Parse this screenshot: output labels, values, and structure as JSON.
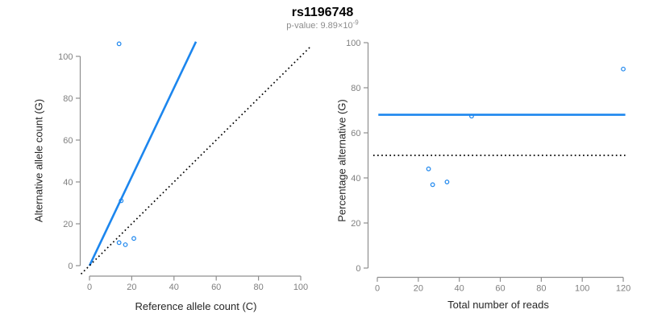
{
  "header": {
    "title": "rs1196748",
    "p_value_prefix": "p-value: 9.89×10",
    "p_value_exponent": "-9"
  },
  "colors": {
    "accent_blue": "#1C86EE",
    "axis_line_gray": "#8f8f8f",
    "tick_text_gray": "#7f7f7f",
    "axis_title_dark": "#262626",
    "dotted_line_black": "#000000"
  },
  "chart_data": [
    {
      "type": "scatter",
      "panel": "left",
      "xlabel": "Reference allele count (C)",
      "ylabel": "Alternative allele count (G)",
      "xlim": [
        0,
        100
      ],
      "ylim": [
        0,
        106
      ],
      "xticks": [
        0,
        20,
        40,
        60,
        80,
        100
      ],
      "yticks": [
        0,
        20,
        40,
        60,
        80,
        100
      ],
      "grid": false,
      "legend": null,
      "points": [
        {
          "x": 14,
          "y": 106
        },
        {
          "x": 15,
          "y": 31
        },
        {
          "x": 14,
          "y": 11
        },
        {
          "x": 17,
          "y": 10
        },
        {
          "x": 21,
          "y": 13
        }
      ],
      "lines": [
        {
          "name": "fit-line",
          "style": "solid",
          "color": "#1C86EE",
          "from": [
            0,
            0
          ],
          "to": [
            50.4,
            107
          ]
        },
        {
          "name": "identity-line",
          "style": "dotted",
          "color": "#000000",
          "from": [
            -4,
            -4
          ],
          "to": [
            105,
            105
          ]
        }
      ]
    },
    {
      "type": "scatter",
      "panel": "right",
      "xlabel": "Total number of reads",
      "ylabel": "Percentage alternative (G)",
      "xlim": [
        0,
        120
      ],
      "ylim": [
        0,
        100
      ],
      "xticks": [
        0,
        20,
        40,
        60,
        80,
        100,
        120
      ],
      "yticks": [
        0,
        20,
        40,
        60,
        80,
        100
      ],
      "grid": false,
      "legend": null,
      "points": [
        {
          "x": 25,
          "y": 44
        },
        {
          "x": 27,
          "y": 37
        },
        {
          "x": 34,
          "y": 38.2
        },
        {
          "x": 46,
          "y": 67.4
        },
        {
          "x": 120,
          "y": 88.3
        }
      ],
      "lines": [
        {
          "name": "fit-line",
          "style": "solid",
          "color": "#1C86EE",
          "from": [
            0.5,
            68
          ],
          "to": [
            121,
            68
          ]
        },
        {
          "name": "reference-line",
          "style": "dotted",
          "color": "#000000",
          "from": [
            -2,
            50
          ],
          "to": [
            121,
            50
          ]
        }
      ]
    }
  ]
}
